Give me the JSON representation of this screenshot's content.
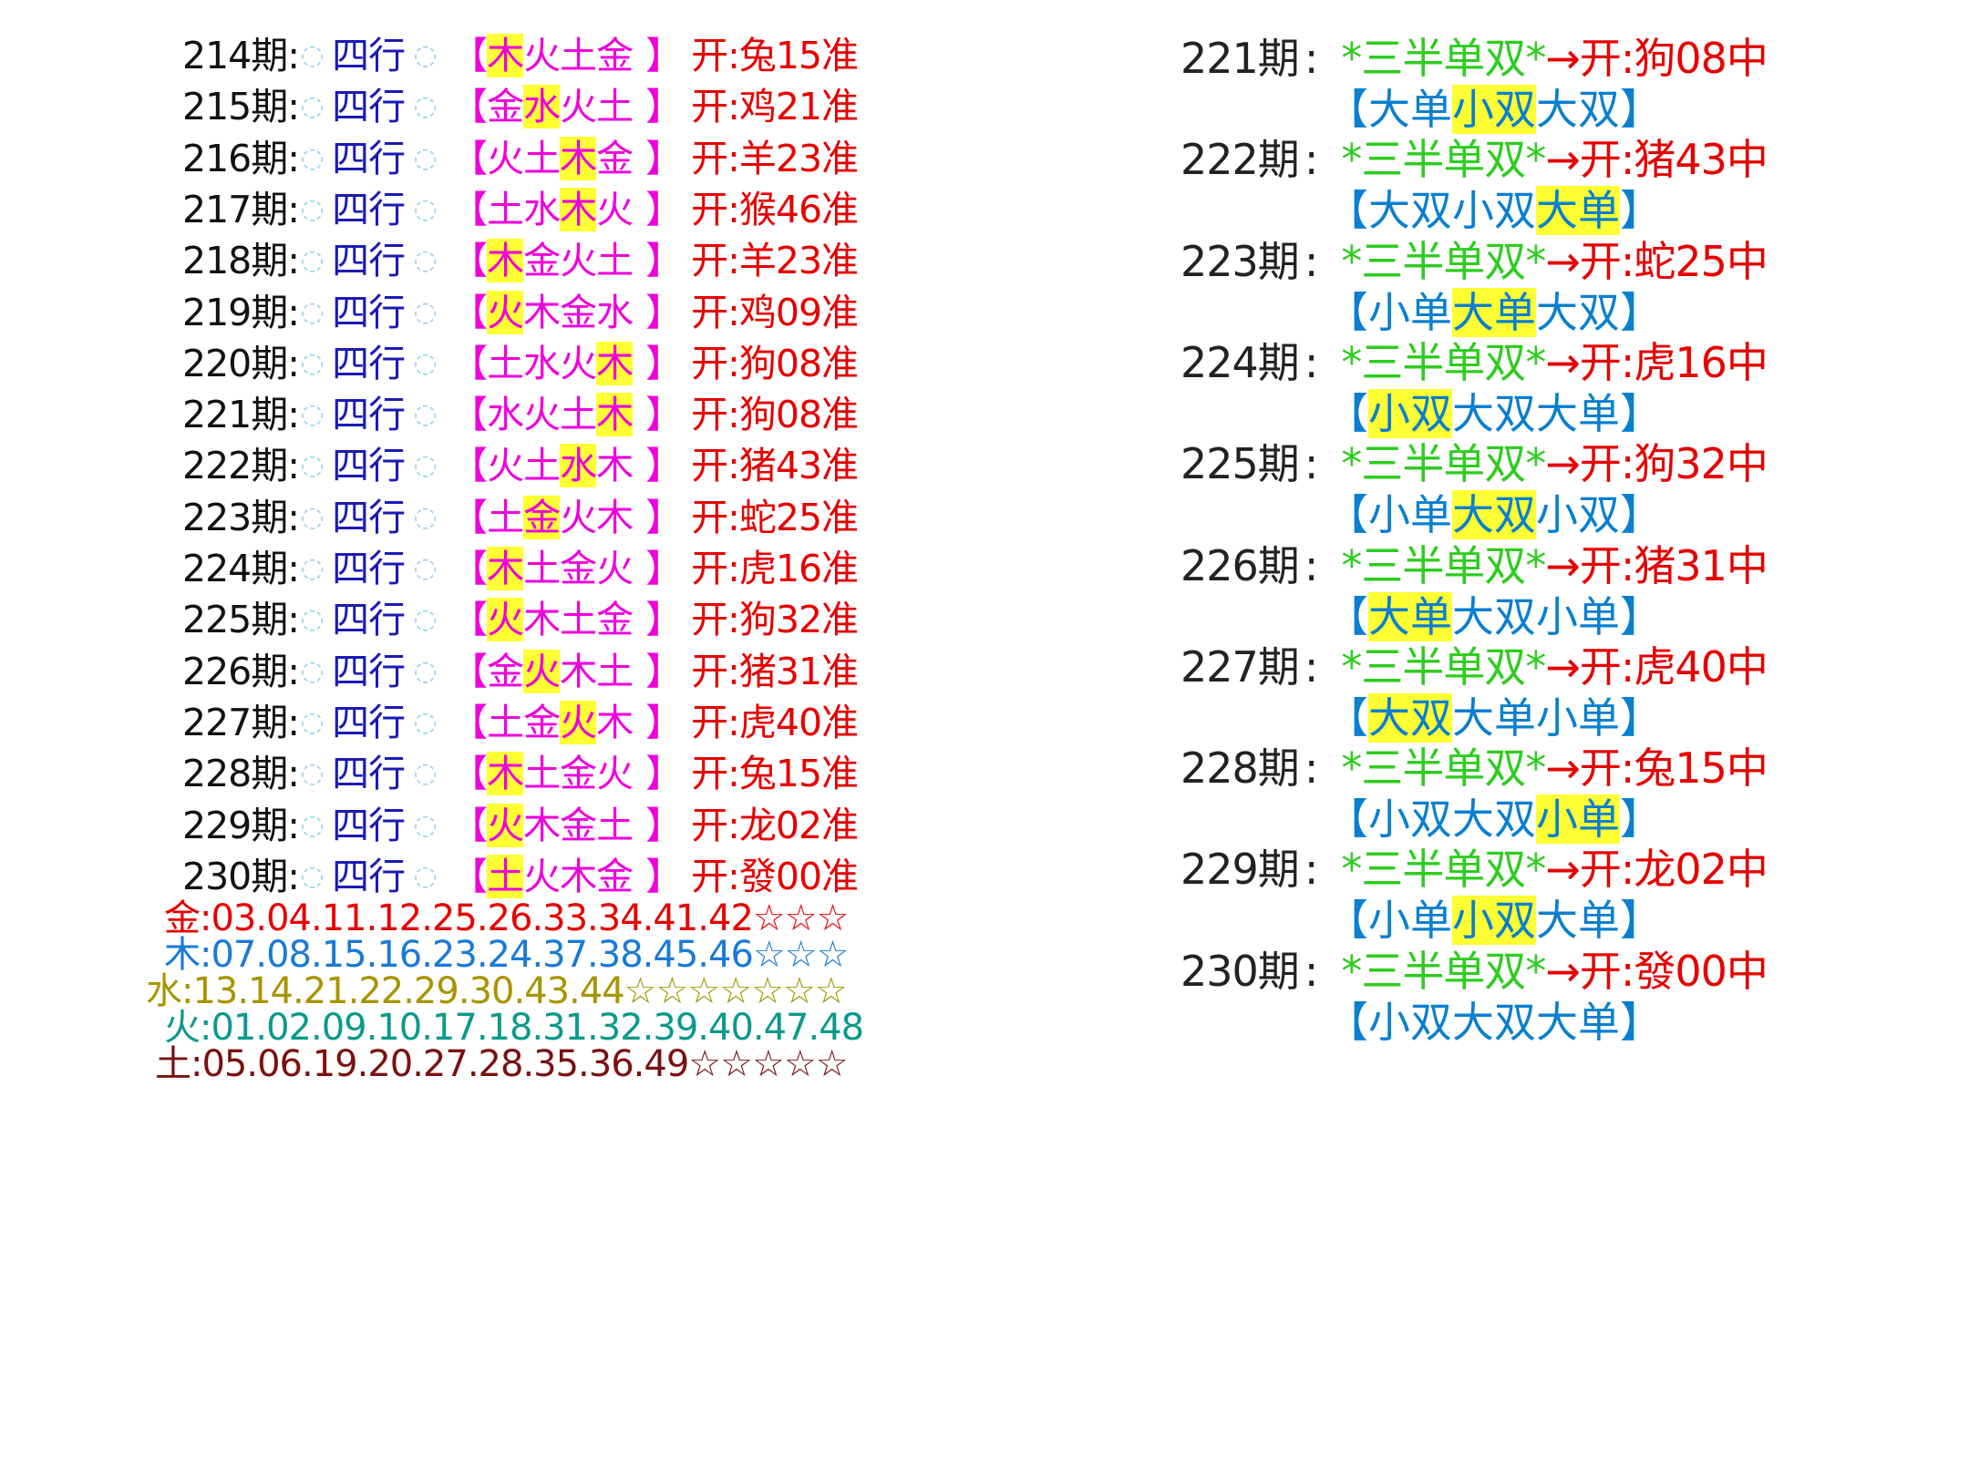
{
  "left": {
    "ring_icon": "ring-icon",
    "rows": [
      {
        "period": "214期:",
        "label": "四行",
        "open": "【",
        "els": [
          "木",
          "火",
          "土",
          "金"
        ],
        "hl": 0,
        "close": "】",
        "result": "开:兔15准"
      },
      {
        "period": "215期:",
        "label": "四行",
        "open": "【",
        "els": [
          "金",
          "水",
          "火",
          "土"
        ],
        "hl": 1,
        "close": "】",
        "result": "开:鸡21准"
      },
      {
        "period": "216期:",
        "label": "四行",
        "open": "【",
        "els": [
          "火",
          "土",
          "木",
          "金"
        ],
        "hl": 2,
        "close": "】",
        "result": "开:羊23准"
      },
      {
        "period": "217期:",
        "label": "四行",
        "open": "【",
        "els": [
          "土",
          "水",
          "木",
          "火"
        ],
        "hl": 2,
        "close": "】",
        "result": "开:猴46准"
      },
      {
        "period": "218期:",
        "label": "四行",
        "open": "【",
        "els": [
          "木",
          "金",
          "火",
          "土"
        ],
        "hl": 0,
        "close": "】",
        "result": "开:羊23准"
      },
      {
        "period": "219期:",
        "label": "四行",
        "open": "【",
        "els": [
          "火",
          "木",
          "金",
          "水"
        ],
        "hl": 0,
        "close": "】",
        "result": "开:鸡09准"
      },
      {
        "period": "220期:",
        "label": "四行",
        "open": "【",
        "els": [
          "土",
          "水",
          "火",
          "木"
        ],
        "hl": 3,
        "close": "】",
        "result": "开:狗08准"
      },
      {
        "period": "221期:",
        "label": "四行",
        "open": "【",
        "els": [
          "水",
          "火",
          "土",
          "木"
        ],
        "hl": 3,
        "close": "】",
        "result": "开:狗08准"
      },
      {
        "period": "222期:",
        "label": "四行",
        "open": "【",
        "els": [
          "火",
          "土",
          "水",
          "木"
        ],
        "hl": 2,
        "close": "】",
        "result": "开:猪43准"
      },
      {
        "period": "223期:",
        "label": "四行",
        "open": "【",
        "els": [
          "土",
          "金",
          "火",
          "木"
        ],
        "hl": 1,
        "close": "】",
        "result": "开:蛇25准"
      },
      {
        "period": "224期:",
        "label": "四行",
        "open": "【",
        "els": [
          "木",
          "土",
          "金",
          "火"
        ],
        "hl": 0,
        "close": "】",
        "result": "开:虎16准"
      },
      {
        "period": "225期:",
        "label": "四行",
        "open": "【",
        "els": [
          "火",
          "木",
          "土",
          "金"
        ],
        "hl": 0,
        "close": "】",
        "result": "开:狗32准"
      },
      {
        "period": "226期:",
        "label": "四行",
        "open": "【",
        "els": [
          "金",
          "火",
          "木",
          "土"
        ],
        "hl": 1,
        "close": "】",
        "result": "开:猪31准"
      },
      {
        "period": "227期:",
        "label": "四行",
        "open": "【",
        "els": [
          "土",
          "金",
          "火",
          "木"
        ],
        "hl": 2,
        "close": "】",
        "result": "开:虎40准"
      },
      {
        "period": "228期:",
        "label": "四行",
        "open": "【",
        "els": [
          "木",
          "土",
          "金",
          "火"
        ],
        "hl": 0,
        "close": "】",
        "result": "开:兔15准"
      },
      {
        "period": "229期:",
        "label": "四行",
        "open": "【",
        "els": [
          "火",
          "木",
          "金",
          "土"
        ],
        "hl": 0,
        "close": "】",
        "result": "开:龙02准"
      },
      {
        "period": "230期:",
        "label": "四行",
        "open": "【",
        "els": [
          "土",
          "火",
          "木",
          "金"
        ],
        "hl": 0,
        "close": "】",
        "result": "开:發00准"
      }
    ],
    "numbers": [
      {
        "text": "金:03.04.11.12.25.26.33.34.41.42☆☆☆",
        "color": "#e60000"
      },
      {
        "text": "木:07.08.15.16.23.24.37.38.45.46☆☆☆",
        "color": "#1a7ad6"
      },
      {
        "text": "水:13.14.21.22.29.30.43.44☆☆☆☆☆☆☆",
        "color": "#a89400"
      },
      {
        "text": "火:01.02.09.10.17.18.31.32.39.40.47.48",
        "color": "#0a9a8a"
      },
      {
        "text": "土:05.06.19.20.27.28.35.36.49☆☆☆☆☆",
        "color": "#7a1010"
      }
    ]
  },
  "right": {
    "rows": [
      {
        "period": "221期",
        "colon": ":",
        "label": "*三半单双*",
        "result": "→开:狗08中",
        "combo": [
          "大单",
          "小双",
          "大双"
        ],
        "hl": 1
      },
      {
        "period": "222期",
        "colon": ":",
        "label": "*三半单双*",
        "result": "→开:猪43中",
        "combo": [
          "大双",
          "小双",
          "大单"
        ],
        "hl": 2
      },
      {
        "period": "223期",
        "colon": ":",
        "label": "*三半单双*",
        "result": "→开:蛇25中",
        "combo": [
          "小单",
          "大单",
          "大双"
        ],
        "hl": 1
      },
      {
        "period": "224期",
        "colon": ":",
        "label": "*三半单双*",
        "result": "→开:虎16中",
        "combo": [
          "小双",
          "大双",
          "大单"
        ],
        "hl": 0
      },
      {
        "period": "225期",
        "colon": ":",
        "label": "*三半单双*",
        "result": "→开:狗32中",
        "combo": [
          "小单",
          "大双",
          "小双"
        ],
        "hl": 1
      },
      {
        "period": "226期",
        "colon": ":",
        "label": "*三半单双*",
        "result": "→开:猪31中",
        "combo": [
          "大单",
          "大双",
          "小单"
        ],
        "hl": 0
      },
      {
        "period": "227期",
        "colon": ":",
        "label": "*三半单双*",
        "result": "→开:虎40中",
        "combo": [
          "大双",
          "大单",
          "小单"
        ],
        "hl": 0
      },
      {
        "period": "228期",
        "colon": ":",
        "label": "*三半单双*",
        "result": "→开:兔15中",
        "combo": [
          "小双",
          "大双",
          "小单"
        ],
        "hl": 2
      },
      {
        "period": "229期",
        "colon": ":",
        "label": "*三半单双*",
        "result": "→开:龙02中",
        "combo": [
          "小单",
          "小双",
          "大单"
        ],
        "hl": 1
      },
      {
        "period": "230期",
        "colon": ":",
        "label": "*三半单双*",
        "result": "→开:發00中",
        "combo": [
          "小双",
          "大双",
          "大单"
        ],
        "hl": -1
      }
    ],
    "combo_open": "【",
    "combo_close": "】"
  }
}
